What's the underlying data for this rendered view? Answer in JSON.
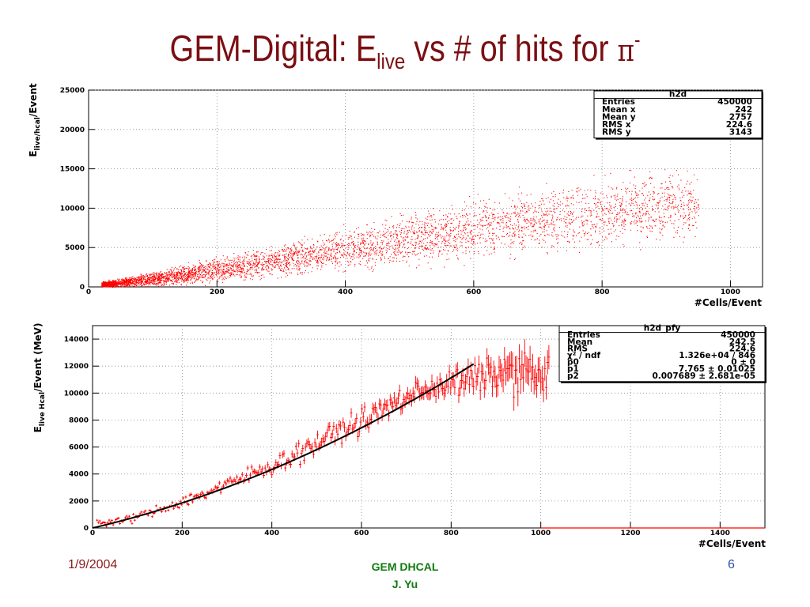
{
  "slide": {
    "title_main": "GEM-Digital: E",
    "title_sub": "live",
    "title_rest": " vs # of hits for ",
    "title_pi": "π",
    "title_sup": "-",
    "footer_date": "1/9/2004",
    "footer_center_line1": "GEM DHCAL",
    "footer_center_line2": "J. Yu",
    "page_number": "6"
  },
  "colors": {
    "title": "#7a0f12",
    "data": "#ff0000",
    "fit": "#000000",
    "date": "#8b1a1a",
    "center": "#117a11",
    "page": "#2e4ea8"
  },
  "chart_data": [
    {
      "type": "scatter",
      "name": "h2d",
      "xlabel": "#Cells/Event",
      "ylabel_main": "E",
      "ylabel_sub": "live/hcal",
      "ylabel_rest": "/Event",
      "xlim": [
        0,
        1050
      ],
      "ylim": [
        0,
        25000
      ],
      "xticks": [
        0,
        200,
        400,
        600,
        800,
        1000
      ],
      "yticks": [
        0,
        5000,
        10000,
        15000,
        20000,
        25000
      ],
      "grid": true,
      "stats": {
        "title": "h2d",
        "rows": [
          {
            "label": "Entries",
            "value": "450000"
          },
          {
            "label": "Mean x",
            "value": "242"
          },
          {
            "label": "Mean y",
            "value": "2757"
          },
          {
            "label": "RMS x",
            "value": "224.6"
          },
          {
            "label": "RMS y",
            "value": "3143"
          }
        ]
      },
      "density_profile": {
        "x": [
          20,
          100,
          200,
          300,
          400,
          500,
          600,
          700,
          800,
          900,
          950
        ],
        "y_center": [
          300,
          1000,
          2200,
          3400,
          4800,
          6100,
          7300,
          8500,
          9500,
          10300,
          10600
        ],
        "y_halfwidth": [
          300,
          700,
          1200,
          1700,
          2200,
          2600,
          3000,
          3400,
          3600,
          3600,
          3000
        ]
      }
    },
    {
      "type": "scatter",
      "name": "h2d_pfy",
      "xlabel": "#Cells/Event",
      "ylabel_main": "E",
      "ylabel_sub": "live Hcal",
      "ylabel_rest": "/Event (MeV)",
      "xlim": [
        0,
        1500
      ],
      "ylim": [
        0,
        15000
      ],
      "xticks": [
        0,
        200,
        400,
        600,
        800,
        1000,
        1200,
        1400
      ],
      "yticks": [
        0,
        2000,
        4000,
        6000,
        8000,
        10000,
        12000,
        14000
      ],
      "grid": true,
      "stats": {
        "title": "h2d_pfy",
        "rows": [
          {
            "label": "Entries",
            "value": "450000"
          },
          {
            "label": "Mean",
            "value": "242.5"
          },
          {
            "label": "RMS",
            "value": "224.6"
          },
          {
            "label": "χ² / ndf",
            "value": "1.326e+04 / 846"
          },
          {
            "label": "p0",
            "value": "0 ±     0"
          },
          {
            "label": "p1",
            "value": "7.765 ± 0.01025"
          },
          {
            "label": "p2",
            "value": "0.007689 ± 2.681e-05"
          }
        ]
      },
      "fit": {
        "p0": 0,
        "p1": 7.765,
        "p2": 0.007689,
        "x_range": [
          0,
          850
        ]
      },
      "profile_points": {
        "x": [
          50,
          100,
          150,
          200,
          250,
          300,
          350,
          400,
          450,
          500,
          550,
          600,
          650,
          700,
          750,
          800,
          850,
          900,
          950,
          1000
        ],
        "y": [
          400,
          850,
          1350,
          1950,
          2550,
          3200,
          3950,
          4600,
          5400,
          6300,
          7200,
          7900,
          8800,
          9700,
          10400,
          10700,
          11000,
          11400,
          11700,
          11200
        ],
        "err": [
          50,
          80,
          100,
          130,
          150,
          180,
          220,
          260,
          300,
          350,
          380,
          420,
          460,
          500,
          550,
          600,
          700,
          900,
          1200,
          1000
        ]
      }
    }
  ]
}
